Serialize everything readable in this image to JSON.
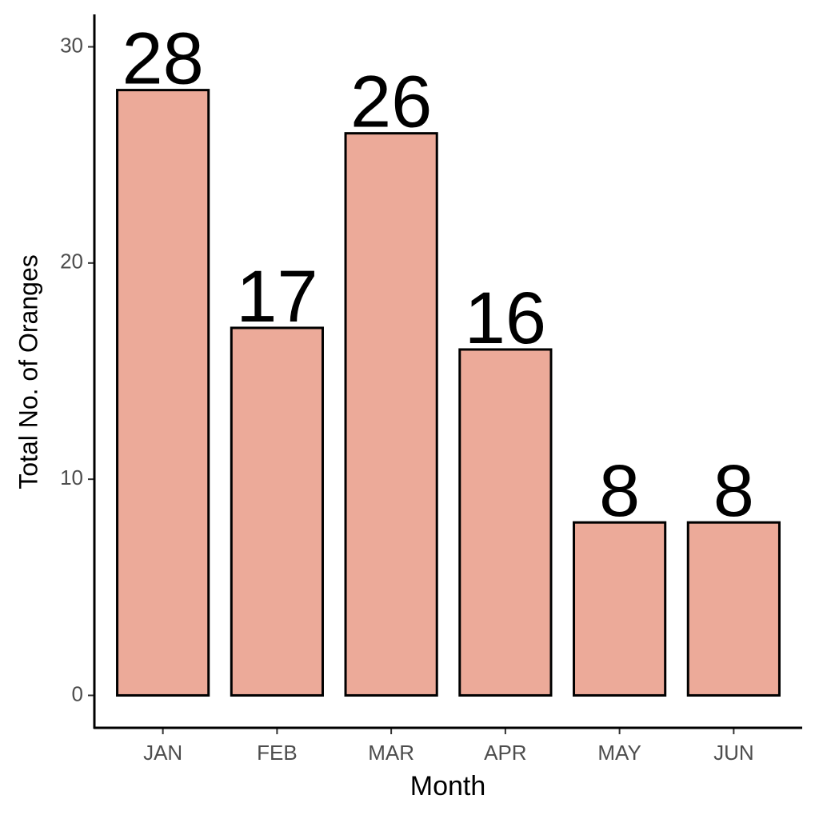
{
  "chart_data": {
    "type": "bar",
    "x_label": "Month",
    "y_label": "Total No. of Oranges",
    "categories": [
      "JAN",
      "FEB",
      "MAR",
      "APR",
      "MAY",
      "JUN"
    ],
    "values": [
      28,
      17,
      26,
      16,
      8,
      8
    ],
    "color": "#ecaa99",
    "ylim": [
      -1.5,
      31.5
    ],
    "yticks": [
      0,
      10,
      20,
      30
    ],
    "grid": false
  }
}
